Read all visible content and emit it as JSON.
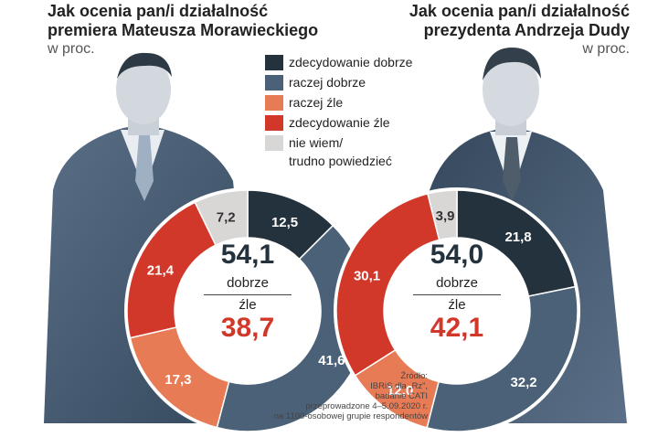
{
  "left": {
    "title_line1": "Jak ocenia pan/i działalność",
    "title_line2": "premiera Mateusza Morawieckiego",
    "unit": "w proc.",
    "positive_total": "54,1",
    "positive_label": "dobrze",
    "negative_label": "źle",
    "negative_total": "38,7"
  },
  "right": {
    "title_line1": "Jak ocenia pan/i działalność",
    "title_line2": "prezydenta Andrzeja Dudy",
    "unit": "w proc.",
    "positive_total": "54,0",
    "positive_label": "dobrze",
    "negative_label": "źle",
    "negative_total": "42,1"
  },
  "legend": [
    {
      "label": "zdecydowanie dobrze",
      "color": "#24323e"
    },
    {
      "label": "raczej dobrze",
      "color": "#4a6178"
    },
    {
      "label": "raczej źle",
      "color": "#e77b56"
    },
    {
      "label": "zdecydowanie źle",
      "color": "#d2382a"
    },
    {
      "label": "nie wiem/",
      "label2": "trudno powiedzieć",
      "color": "#d9d6d6"
    }
  ],
  "source": {
    "line1": "Źródło:",
    "line2": "IBRiS dla „Rz”,",
    "line3": "badanie CATI",
    "line4": "przeprowadzone 4–5.09.2020 r.",
    "line5": "na 1100-osobowej grupie respondentów"
  },
  "chart_data": [
    {
      "type": "pie",
      "categories": [
        "zdecydowanie dobrze",
        "raczej dobrze",
        "raczej źle",
        "zdecydowanie źle",
        "nie wiem/trudno powiedzieć"
      ],
      "values": [
        12.5,
        41.6,
        17.3,
        21.4,
        7.2
      ],
      "value_labels": [
        "12,5",
        "41,6",
        "17,3",
        "21,4",
        "7,2"
      ],
      "colors": [
        "#24323e",
        "#4a6178",
        "#e77b56",
        "#d2382a",
        "#d9d6d6"
      ]
    },
    {
      "type": "pie",
      "categories": [
        "zdecydowanie dobrze",
        "raczej dobrze",
        "raczej źle",
        "zdecydowanie źle",
        "nie wiem/trudno powiedzieć"
      ],
      "values": [
        21.8,
        32.2,
        12.0,
        30.1,
        3.9
      ],
      "value_labels": [
        "21,8",
        "32,2",
        "12,0",
        "30,1",
        "3,9"
      ],
      "colors": [
        "#24323e",
        "#4a6178",
        "#e77b56",
        "#d2382a",
        "#d9d6d6"
      ]
    }
  ]
}
